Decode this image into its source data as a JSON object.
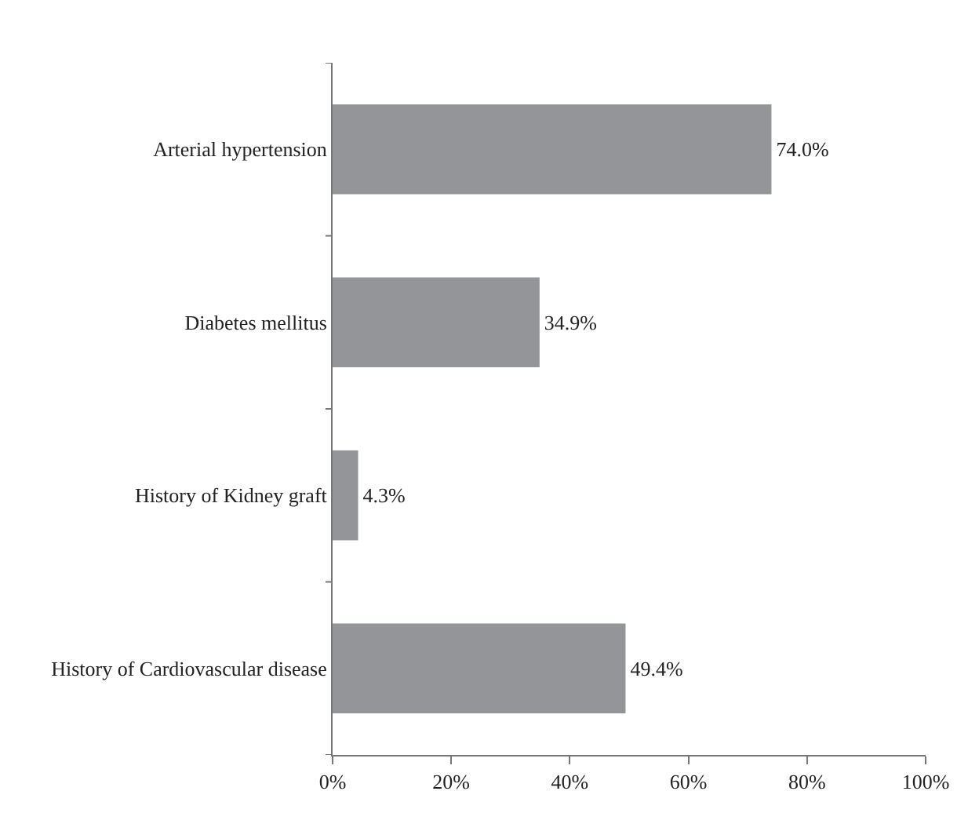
{
  "chart_data": {
    "type": "bar",
    "orientation": "horizontal",
    "categories": [
      "Arterial hypertension",
      "Diabetes mellitus",
      "History of Kidney graft",
      "History of Cardiovascular disease"
    ],
    "values": [
      74.0,
      34.9,
      4.3,
      49.4
    ],
    "value_labels": [
      "74.0%",
      "34.9%",
      "4.3%",
      "49.4%"
    ],
    "color": "#939598",
    "xlim": [
      0,
      100
    ],
    "xticks": [
      {
        "value": 0,
        "label": "0%"
      },
      {
        "value": 20,
        "label": "20%"
      },
      {
        "value": 40,
        "label": "40%"
      },
      {
        "value": 60,
        "label": "60%"
      },
      {
        "value": 80,
        "label": "80%"
      },
      {
        "value": 100,
        "label": "100%"
      }
    ],
    "title": null
  }
}
